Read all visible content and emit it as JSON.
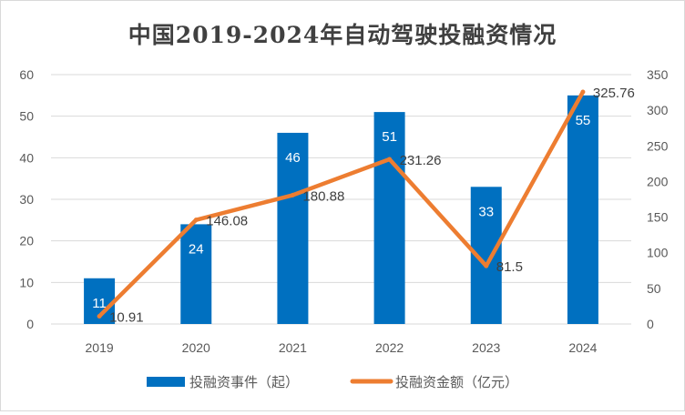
{
  "chart_data": {
    "type": "bar+line",
    "title": "中国2019-2024年自动驾驶投融资情况",
    "categories": [
      "2019",
      "2020",
      "2021",
      "2022",
      "2023",
      "2024"
    ],
    "series": [
      {
        "name": "投融资事件（起）",
        "type": "bar",
        "axis": "left",
        "color": "#0070C0",
        "values": [
          11,
          24,
          46,
          51,
          33,
          55
        ],
        "labels": [
          "11",
          "24",
          "46",
          "51",
          "33",
          "55"
        ]
      },
      {
        "name": "投融资金额（亿元）",
        "type": "line",
        "axis": "right",
        "color": "#ED7D31",
        "values": [
          10.91,
          146.08,
          180.88,
          231.26,
          81.5,
          325.76
        ],
        "labels": [
          "10.91",
          "146.08",
          "180.88",
          "231.26",
          "81.5",
          "325.76"
        ]
      }
    ],
    "left_axis": {
      "min": 0,
      "max": 60,
      "step": 10,
      "ticks": [
        "0",
        "10",
        "20",
        "30",
        "40",
        "50",
        "60"
      ]
    },
    "right_axis": {
      "min": 0,
      "max": 350,
      "step": 50,
      "ticks": [
        "0",
        "50",
        "100",
        "150",
        "200",
        "250",
        "300",
        "350"
      ]
    },
    "grid": true,
    "legend": "bottom"
  }
}
